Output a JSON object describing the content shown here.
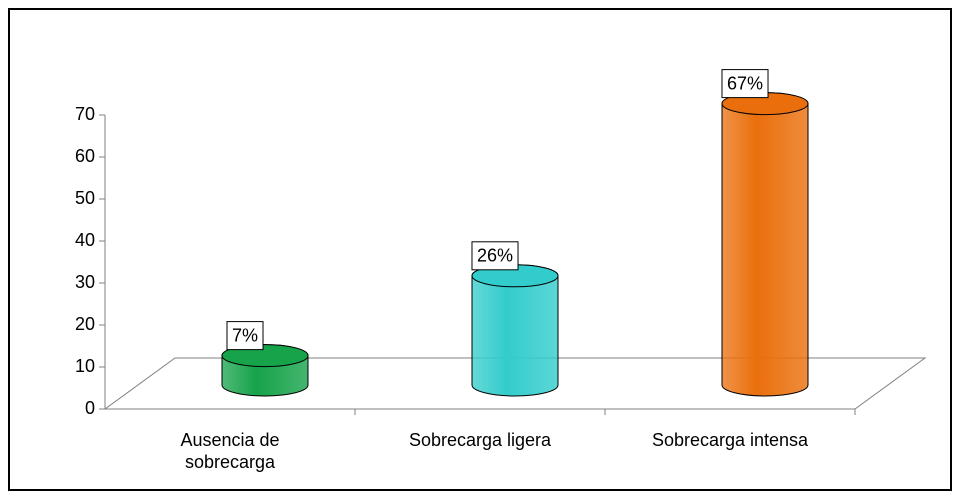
{
  "chart_data": {
    "type": "bar3d",
    "categories": [
      "Ausencia de sobrecarga",
      "Sobrecarga ligera",
      "Sobrecarga intensa"
    ],
    "values": [
      7,
      26,
      67
    ],
    "value_labels": [
      "7%",
      "26%",
      "67%"
    ],
    "colors": [
      "#16a34a",
      "#33cccc",
      "#ea6f0c"
    ],
    "ylim": [
      0,
      70
    ],
    "yticks": [
      0,
      10,
      20,
      30,
      40,
      50,
      60,
      70
    ]
  }
}
